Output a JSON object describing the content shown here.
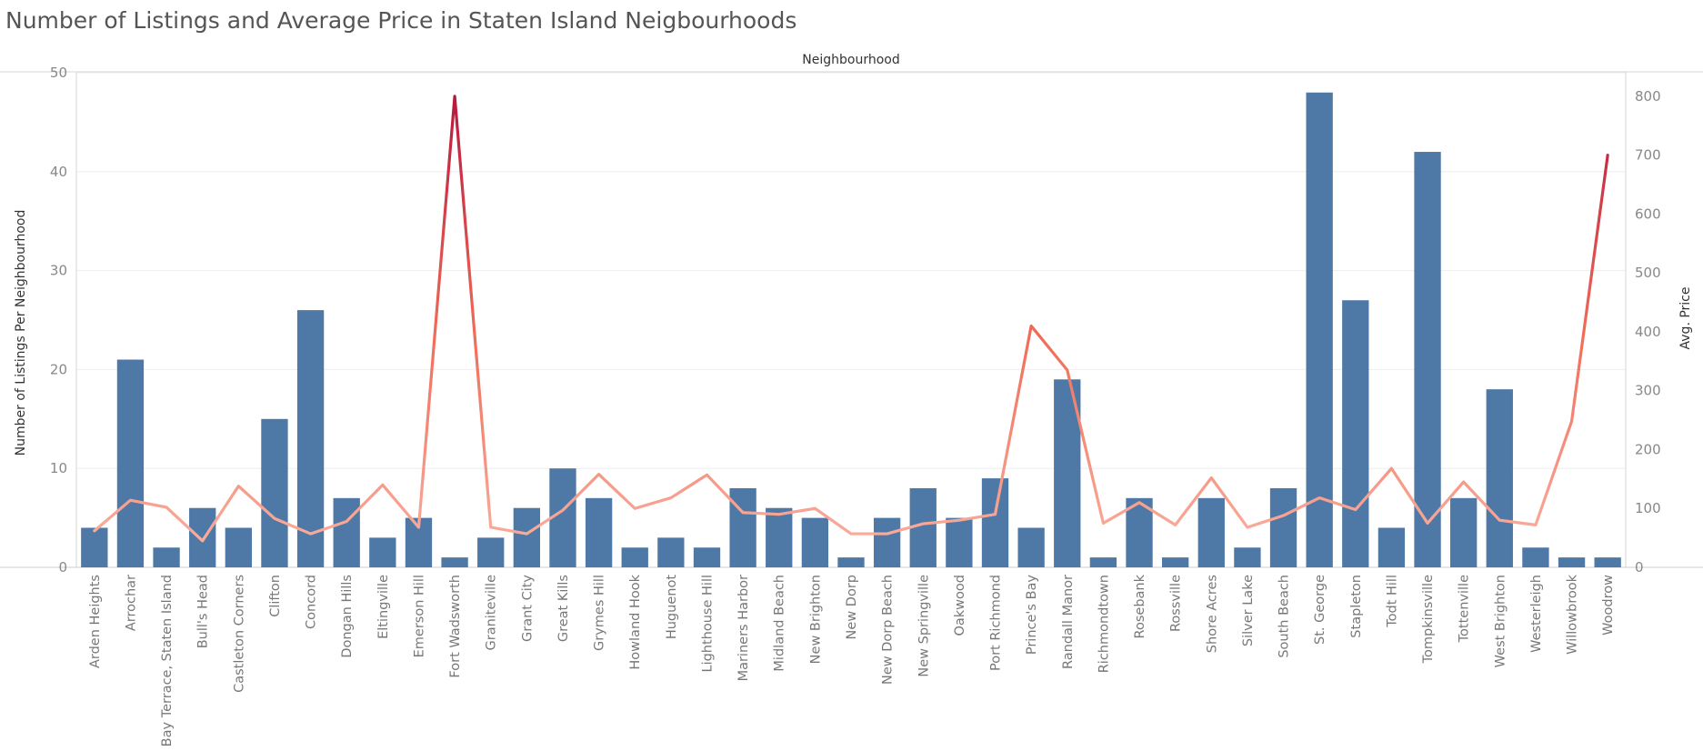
{
  "title": "Number of Listings and Average Price in Staten Island Neigbourhoods",
  "chart_data": {
    "type": "bar",
    "title": "Number of Listings and Average Price in Staten Island Neigbourhoods",
    "column_header": "Neighbourhood",
    "ylabel": "Number of Listings Per Neighbourhood",
    "y2label": "Avg. Price",
    "ylim": [
      0,
      50
    ],
    "y2lim": [
      0,
      840
    ],
    "yticks": [
      0,
      10,
      20,
      30,
      40,
      50
    ],
    "y2ticks": [
      0,
      100,
      200,
      300,
      400,
      500,
      600,
      700,
      800
    ],
    "grid": true,
    "colors": {
      "bars": "#4e79a7",
      "line_low": "#f8aa9a",
      "line_mid": "#ee6a55",
      "line_high": "#c0223f"
    },
    "categories": [
      "Arden Heights",
      "Arrochar",
      "Bay Terrace, Staten Island",
      "Bull's Head",
      "Castleton Corners",
      "Clifton",
      "Concord",
      "Dongan Hills",
      "Eltingville",
      "Emerson Hill",
      "Fort Wadsworth",
      "Graniteville",
      "Grant City",
      "Great Kills",
      "Grymes Hill",
      "Howland Hook",
      "Huguenot",
      "Lighthouse Hill",
      "Mariners Harbor",
      "Midland Beach",
      "New Brighton",
      "New Dorp",
      "New Dorp Beach",
      "New Springville",
      "Oakwood",
      "Port Richmond",
      "Prince's Bay",
      "Randall Manor",
      "Richmondtown",
      "Rosebank",
      "Rossville",
      "Shore Acres",
      "Silver Lake",
      "South Beach",
      "St. George",
      "Stapleton",
      "Todt Hill",
      "Tompkinsville",
      "Tottenville",
      "West Brighton",
      "Westerleigh",
      "Willowbrook",
      "Woodrow"
    ],
    "series": [
      {
        "name": "Number of Listings Per Neighbourhood",
        "type": "bar",
        "axis": "left",
        "values": [
          4,
          21,
          2,
          6,
          4,
          15,
          26,
          7,
          3,
          5,
          1,
          3,
          6,
          10,
          7,
          2,
          3,
          2,
          8,
          6,
          5,
          1,
          5,
          8,
          5,
          9,
          4,
          19,
          1,
          7,
          1,
          7,
          2,
          8,
          48,
          27,
          4,
          42,
          7,
          18,
          2,
          1,
          1
        ]
      },
      {
        "name": "Avg. Price",
        "type": "line",
        "axis": "right",
        "values": [
          62,
          114,
          102,
          45,
          138,
          83,
          57,
          78,
          140,
          68,
          800,
          68,
          57,
          97,
          158,
          100,
          118,
          157,
          93,
          90,
          100,
          57,
          57,
          74,
          80,
          90,
          410,
          335,
          75,
          110,
          72,
          152,
          68,
          88,
          118,
          98,
          168,
          75,
          145,
          80,
          72,
          248,
          700
        ]
      }
    ]
  }
}
